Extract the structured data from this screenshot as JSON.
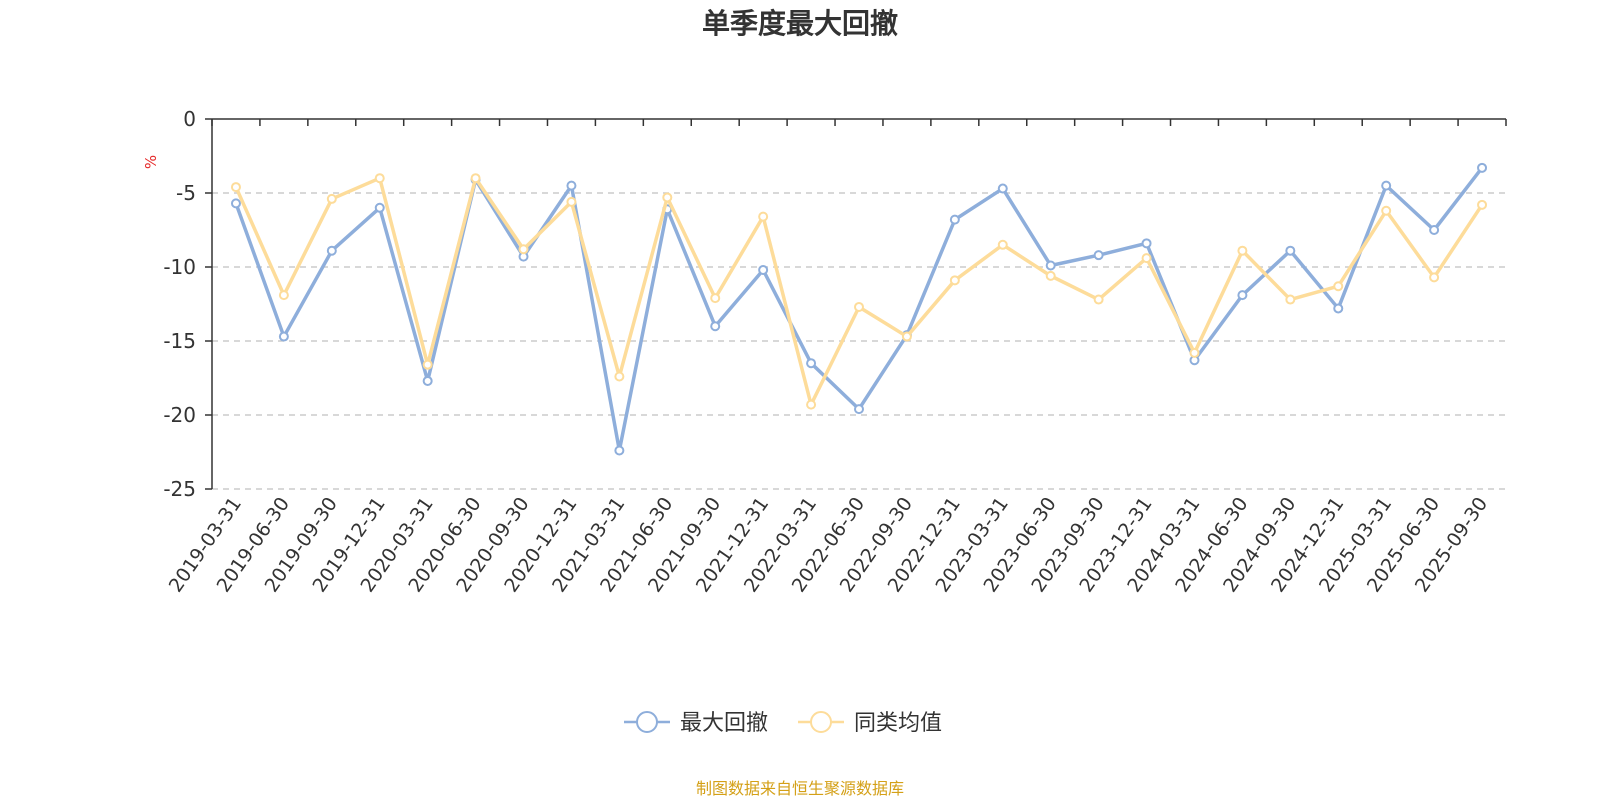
{
  "chart_data": {
    "type": "line",
    "title": "单季度最大回撤",
    "yunit": "%",
    "ylim": [
      -25,
      0
    ],
    "yticks": [
      "0",
      "-5",
      "-10",
      "-15",
      "-20",
      "-25"
    ],
    "ytick_values": [
      0,
      -5,
      -10,
      -15,
      -20,
      -25
    ],
    "grid": true,
    "legend_position": "bottom",
    "categories": [
      "2019-03-31",
      "2019-06-30",
      "2019-09-30",
      "2019-12-31",
      "2020-03-31",
      "2020-06-30",
      "2020-09-30",
      "2020-12-31",
      "2021-03-31",
      "2021-06-30",
      "2021-09-30",
      "2021-12-31",
      "2022-03-31",
      "2022-06-30",
      "2022-09-30",
      "2022-12-31",
      "2023-03-31",
      "2023-06-30",
      "2023-09-30",
      "2023-12-31",
      "2024-03-31",
      "2024-06-30",
      "2024-09-30",
      "2024-12-31",
      "2025-03-31",
      "2025-06-30",
      "2025-09-30"
    ],
    "series": [
      {
        "name": "最大回撤",
        "color": "#8eaedb",
        "values": [
          -5.7,
          -14.7,
          -8.9,
          -6.0,
          -17.7,
          -4.1,
          -9.3,
          -4.5,
          -22.4,
          -6.1,
          -14.0,
          -10.2,
          -16.5,
          -19.6,
          -14.6,
          -6.8,
          -4.7,
          -9.9,
          -9.2,
          -8.4,
          -16.3,
          -11.9,
          -8.9,
          -12.8,
          -4.5,
          -7.5,
          -3.3
        ]
      },
      {
        "name": "同类均值",
        "color": "#fddc9a",
        "values": [
          -4.6,
          -11.9,
          -5.4,
          -4.0,
          -16.6,
          -4.0,
          -8.8,
          -5.6,
          -17.4,
          -5.3,
          -12.1,
          -6.6,
          -19.3,
          -12.7,
          -14.7,
          -10.9,
          -8.5,
          -10.6,
          -12.2,
          -9.4,
          -15.8,
          -8.9,
          -12.2,
          -11.3,
          -6.2,
          -10.7,
          -5.8
        ]
      }
    ],
    "source": "制图数据来自恒生聚源数据库"
  }
}
